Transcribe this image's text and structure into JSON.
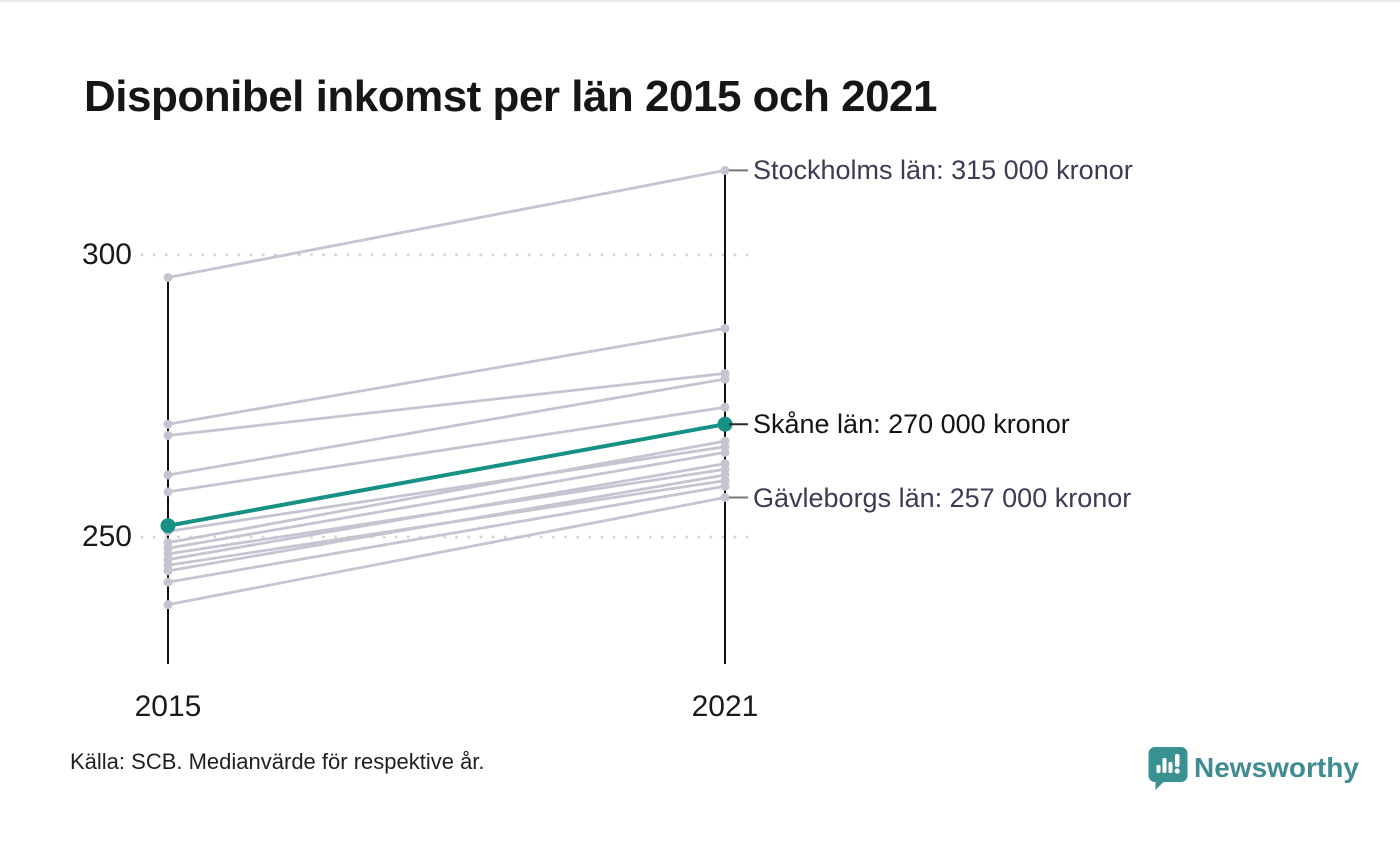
{
  "header": {
    "title": "Disponibel inkomst per län 2015 och 2021"
  },
  "chart_data": {
    "type": "slope",
    "title": "Disponibel inkomst per län 2015 och 2021",
    "x_categories": [
      "2015",
      "2021"
    ],
    "y_tick_labels": [
      "300",
      "250"
    ],
    "y_tick_values": [
      300,
      250
    ],
    "unit": "tusen kronor",
    "grid": "dotted-horizontal",
    "legend": "none",
    "colors": {
      "axis": "#111111",
      "line": "#c7c4d2",
      "highlight": "#169183",
      "gridline": "#d6d6d6",
      "connector": "#777777",
      "connector_highlight": "#2a2a2a"
    },
    "series": [
      {
        "name": "Stockholms län",
        "values": [
          296,
          315
        ],
        "highlight": false,
        "labeled": true,
        "label": "Stockholms län: 315 000 kronor"
      },
      {
        "name": "",
        "values": [
          270,
          287
        ],
        "highlight": false,
        "labeled": false,
        "estimated": true
      },
      {
        "name": "",
        "values": [
          268,
          279
        ],
        "highlight": false,
        "labeled": false,
        "estimated": true
      },
      {
        "name": "",
        "values": [
          261,
          278
        ],
        "highlight": false,
        "labeled": false,
        "estimated": true
      },
      {
        "name": "",
        "values": [
          258,
          273
        ],
        "highlight": false,
        "labeled": false,
        "estimated": true
      },
      {
        "name": "Skåne län",
        "values": [
          252,
          270
        ],
        "highlight": true,
        "labeled": true,
        "label": "Skåne län: 270 000 kronor"
      },
      {
        "name": "",
        "values": [
          251,
          266
        ],
        "highlight": false,
        "labeled": false,
        "estimated": true
      },
      {
        "name": "",
        "values": [
          249,
          267
        ],
        "highlight": false,
        "labeled": false,
        "estimated": true
      },
      {
        "name": "",
        "values": [
          248,
          265
        ],
        "highlight": false,
        "labeled": false,
        "estimated": true
      },
      {
        "name": "",
        "values": [
          247,
          262
        ],
        "highlight": false,
        "labeled": false,
        "estimated": true
      },
      {
        "name": "",
        "values": [
          246,
          263
        ],
        "highlight": false,
        "labeled": false,
        "estimated": true
      },
      {
        "name": "",
        "values": [
          245,
          260
        ],
        "highlight": false,
        "labeled": false,
        "estimated": true
      },
      {
        "name": "",
        "values": [
          244,
          261
        ],
        "highlight": false,
        "labeled": false,
        "estimated": true
      },
      {
        "name": "",
        "values": [
          242,
          259
        ],
        "highlight": false,
        "labeled": false,
        "estimated": true
      },
      {
        "name": "Gävleborgs län",
        "values": [
          238,
          257
        ],
        "highlight": false,
        "labeled": true,
        "label": "Gävleborgs län: 257 000 kronor"
      }
    ]
  },
  "footer": {
    "source": "Källa: SCB. Medianvärde för respektive år.",
    "brand": "Newsworthy"
  }
}
